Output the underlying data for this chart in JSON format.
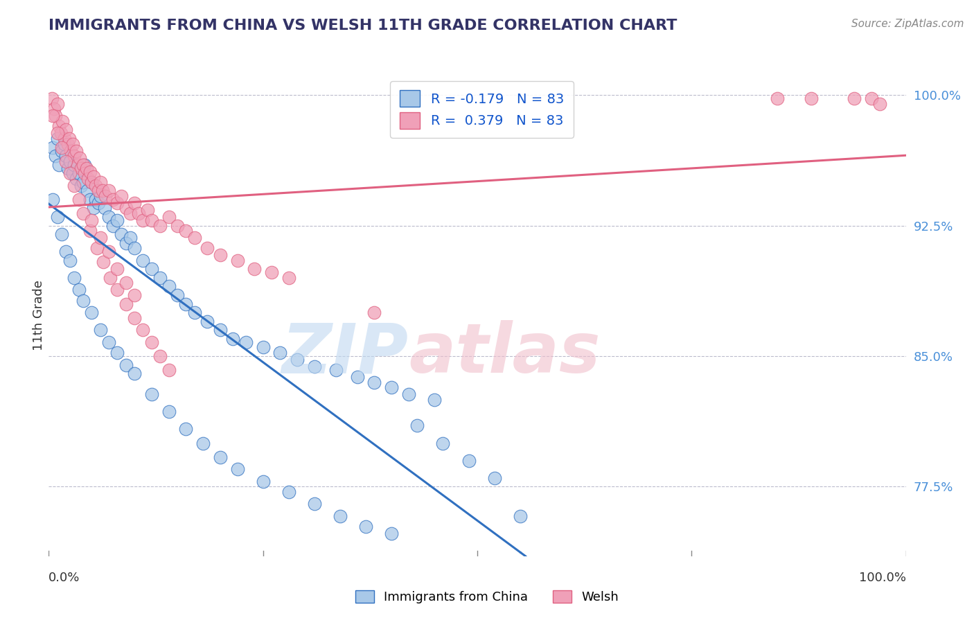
{
  "title": "IMMIGRANTS FROM CHINA VS WELSH 11TH GRADE CORRELATION CHART",
  "source": "Source: ZipAtlas.com",
  "ylabel": "11th Grade",
  "legend_blue_label": "Immigrants from China",
  "legend_pink_label": "Welsh",
  "R_blue": -0.179,
  "R_pink": 0.379,
  "N": 83,
  "color_blue": "#A8C8E8",
  "color_pink": "#F0A0B8",
  "color_blue_line": "#3070C0",
  "color_pink_line": "#E06080",
  "xlim": [
    0.0,
    1.0
  ],
  "ylim": [
    0.735,
    1.012
  ],
  "yticks": [
    0.775,
    0.85,
    0.925,
    1.0
  ],
  "ytick_labels": [
    "77.5%",
    "85.0%",
    "92.5%",
    "100.0%"
  ],
  "blue_x": [
    0.005,
    0.008,
    0.01,
    0.012,
    0.015,
    0.018,
    0.02,
    0.022,
    0.025,
    0.028,
    0.03,
    0.032,
    0.035,
    0.038,
    0.04,
    0.042,
    0.045,
    0.048,
    0.05,
    0.052,
    0.055,
    0.058,
    0.06,
    0.065,
    0.07,
    0.075,
    0.08,
    0.085,
    0.09,
    0.095,
    0.1,
    0.11,
    0.12,
    0.13,
    0.14,
    0.15,
    0.16,
    0.17,
    0.185,
    0.2,
    0.215,
    0.23,
    0.25,
    0.27,
    0.29,
    0.31,
    0.335,
    0.36,
    0.38,
    0.4,
    0.42,
    0.45,
    0.005,
    0.01,
    0.015,
    0.02,
    0.025,
    0.03,
    0.035,
    0.04,
    0.05,
    0.06,
    0.07,
    0.08,
    0.09,
    0.1,
    0.12,
    0.14,
    0.16,
    0.18,
    0.2,
    0.22,
    0.25,
    0.28,
    0.31,
    0.34,
    0.37,
    0.4,
    0.43,
    0.46,
    0.49,
    0.52,
    0.55
  ],
  "blue_y": [
    0.97,
    0.965,
    0.975,
    0.96,
    0.968,
    0.972,
    0.965,
    0.958,
    0.962,
    0.955,
    0.96,
    0.952,
    0.955,
    0.948,
    0.95,
    0.96,
    0.945,
    0.94,
    0.95,
    0.935,
    0.94,
    0.938,
    0.942,
    0.935,
    0.93,
    0.925,
    0.928,
    0.92,
    0.915,
    0.918,
    0.912,
    0.905,
    0.9,
    0.895,
    0.89,
    0.885,
    0.88,
    0.875,
    0.87,
    0.865,
    0.86,
    0.858,
    0.855,
    0.852,
    0.848,
    0.844,
    0.842,
    0.838,
    0.835,
    0.832,
    0.828,
    0.825,
    0.94,
    0.93,
    0.92,
    0.91,
    0.905,
    0.895,
    0.888,
    0.882,
    0.875,
    0.865,
    0.858,
    0.852,
    0.845,
    0.84,
    0.828,
    0.818,
    0.808,
    0.8,
    0.792,
    0.785,
    0.778,
    0.772,
    0.765,
    0.758,
    0.752,
    0.748,
    0.81,
    0.8,
    0.79,
    0.78,
    0.758
  ],
  "pink_x": [
    0.004,
    0.006,
    0.008,
    0.01,
    0.012,
    0.014,
    0.016,
    0.018,
    0.02,
    0.022,
    0.024,
    0.026,
    0.028,
    0.03,
    0.032,
    0.034,
    0.036,
    0.038,
    0.04,
    0.042,
    0.044,
    0.046,
    0.048,
    0.05,
    0.052,
    0.055,
    0.058,
    0.06,
    0.063,
    0.066,
    0.07,
    0.075,
    0.08,
    0.085,
    0.09,
    0.095,
    0.1,
    0.105,
    0.11,
    0.115,
    0.12,
    0.13,
    0.14,
    0.15,
    0.16,
    0.17,
    0.185,
    0.2,
    0.22,
    0.24,
    0.26,
    0.28,
    0.005,
    0.01,
    0.015,
    0.02,
    0.025,
    0.03,
    0.035,
    0.04,
    0.048,
    0.056,
    0.064,
    0.072,
    0.08,
    0.09,
    0.1,
    0.11,
    0.12,
    0.13,
    0.14,
    0.05,
    0.06,
    0.07,
    0.08,
    0.09,
    0.1,
    0.38,
    0.85,
    0.89,
    0.94,
    0.96,
    0.97
  ],
  "pink_y": [
    0.998,
    0.992,
    0.988,
    0.995,
    0.982,
    0.978,
    0.985,
    0.975,
    0.98,
    0.972,
    0.975,
    0.968,
    0.972,
    0.965,
    0.968,
    0.96,
    0.964,
    0.958,
    0.96,
    0.955,
    0.958,
    0.952,
    0.956,
    0.95,
    0.953,
    0.948,
    0.945,
    0.95,
    0.945,
    0.942,
    0.945,
    0.94,
    0.938,
    0.942,
    0.935,
    0.932,
    0.938,
    0.932,
    0.928,
    0.934,
    0.928,
    0.925,
    0.93,
    0.925,
    0.922,
    0.918,
    0.912,
    0.908,
    0.905,
    0.9,
    0.898,
    0.895,
    0.988,
    0.978,
    0.97,
    0.962,
    0.955,
    0.948,
    0.94,
    0.932,
    0.922,
    0.912,
    0.904,
    0.895,
    0.888,
    0.88,
    0.872,
    0.865,
    0.858,
    0.85,
    0.842,
    0.928,
    0.918,
    0.91,
    0.9,
    0.892,
    0.885,
    0.875,
    0.998,
    0.998,
    0.998,
    0.998,
    0.995
  ]
}
